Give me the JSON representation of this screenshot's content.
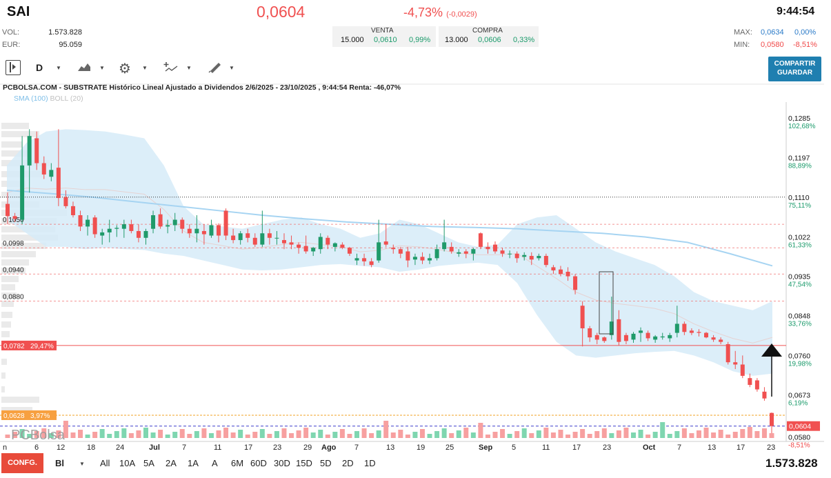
{
  "header": {
    "ticker": "SAI",
    "price": "0,0604",
    "change_pct": "-4,73%",
    "change_abs": "(-0,0029)",
    "time": "9:44:54"
  },
  "stats": {
    "vol_label": "VOL:",
    "vol_value": "1.573.828",
    "eur_label": "EUR:",
    "eur_value": "95.059",
    "max_label": "MAX:",
    "max_value": "0,0634",
    "max_pct": "0,00%",
    "min_label": "MIN:",
    "min_value": "0,0580",
    "min_pct": "-8,51%"
  },
  "orderbook": {
    "sell_label": "VENTA",
    "sell_qty": "15.000",
    "sell_price": "0,0610",
    "sell_pct": "0,99%",
    "buy_label": "COMPRA",
    "buy_qty": "13.000",
    "buy_price": "0,0606",
    "buy_pct": "0,33%"
  },
  "toolbar": {
    "interval": "D",
    "share_line1": "COMPARTIR",
    "share_line2": "GUARDAR"
  },
  "chart_title": "PCBOLSA.COM - SUBSTRATE Histórico Lineal Ajustado a Dividendos 2/6/2025 - 23/10/2025 , 9:44:54 Renta: -46,07%",
  "indicators": {
    "sma": "SMA (100)",
    "boll": "BOLL (20)"
  },
  "watermark": "PCBolsa",
  "bottom": {
    "config": "CONFG.",
    "scale": "Bl",
    "periods": [
      "All",
      "10A",
      "5A",
      "2A",
      "1A",
      "A",
      "6M",
      "60D",
      "30D",
      "15D",
      "5D",
      "2D",
      "1D"
    ],
    "volume": "1.573.828"
  },
  "colors": {
    "up": "#1f9a6a",
    "down": "#f05050",
    "band": "#d6ebf8",
    "sma": "#a6d4f2"
  },
  "chart_data": {
    "type": "candlestick",
    "title": "PCBOLSA.COM - SUBSTRATE Histórico Lineal Ajustado a Dividendos 2/6/2025 - 23/10/2025",
    "ylim": [
      0.057,
      0.132
    ],
    "y_ticks": [
      {
        "value": 0.1285,
        "label": "0,1285",
        "pct": "102,68%"
      },
      {
        "value": 0.1197,
        "label": "0,1197",
        "pct": "88,89%"
      },
      {
        "value": 0.111,
        "label": "0,1110",
        "pct": "75,11%"
      },
      {
        "value": 0.1022,
        "label": "0,1022",
        "pct": "61,33%"
      },
      {
        "value": 0.0935,
        "label": "0,0935",
        "pct": "47,54%"
      },
      {
        "value": 0.0848,
        "label": "0,0848",
        "pct": "33,76%"
      },
      {
        "value": 0.076,
        "label": "0,0760",
        "pct": "19,98%"
      },
      {
        "value": 0.0673,
        "label": "0,0673",
        "pct": "6,19%"
      },
      {
        "value": 0.058,
        "label": "0,0580",
        "pct": "-8,51%"
      }
    ],
    "left_levels": [
      {
        "value": 0.105,
        "label": "0,1050"
      },
      {
        "value": 0.0998,
        "label": "0,0998"
      },
      {
        "value": 0.094,
        "label": "0,0940"
      },
      {
        "value": 0.088,
        "label": "0,0880"
      }
    ],
    "support_line": {
      "value": 0.0782,
      "label": "0,0782",
      "pct": "29,47%"
    },
    "orange_line": {
      "value": 0.0628,
      "label": "0,0628",
      "pct": "3,97%"
    },
    "last_price": {
      "value": 0.0604,
      "label": "0,0604"
    },
    "dotted_line": 0.111,
    "x_labels": [
      "n",
      "6",
      "12",
      "18",
      "24",
      "Jul",
      "7",
      "11",
      "17",
      "23",
      "29",
      "Ago",
      "7",
      "13",
      "19",
      "25",
      "Sep",
      "5",
      "11",
      "17",
      "23",
      "Oct",
      "7",
      "13",
      "17",
      "23"
    ],
    "candles": [
      {
        "o": 0.1095,
        "h": 0.112,
        "l": 0.105,
        "c": 0.1068
      },
      {
        "o": 0.1068,
        "h": 0.1075,
        "l": 0.1055,
        "c": 0.1062
      },
      {
        "o": 0.106,
        "h": 0.1245,
        "l": 0.105,
        "c": 0.118
      },
      {
        "o": 0.118,
        "h": 0.126,
        "l": 0.112,
        "c": 0.1245
      },
      {
        "o": 0.124,
        "h": 0.1255,
        "l": 0.117,
        "c": 0.1185
      },
      {
        "o": 0.1185,
        "h": 0.12,
        "l": 0.115,
        "c": 0.116
      },
      {
        "o": 0.1155,
        "h": 0.1185,
        "l": 0.1145,
        "c": 0.117
      },
      {
        "o": 0.1175,
        "h": 0.126,
        "l": 0.109,
        "c": 0.1108
      },
      {
        "o": 0.111,
        "h": 0.1125,
        "l": 0.1085,
        "c": 0.109
      },
      {
        "o": 0.109,
        "h": 0.11,
        "l": 0.1065,
        "c": 0.107
      },
      {
        "o": 0.107,
        "h": 0.108,
        "l": 0.1035,
        "c": 0.1045
      },
      {
        "o": 0.1045,
        "h": 0.107,
        "l": 0.1025,
        "c": 0.106
      },
      {
        "o": 0.1065,
        "h": 0.107,
        "l": 0.102,
        "c": 0.1028
      },
      {
        "o": 0.1025,
        "h": 0.104,
        "l": 0.1005,
        "c": 0.1032
      },
      {
        "o": 0.1032,
        "h": 0.106,
        "l": 0.101,
        "c": 0.104
      },
      {
        "o": 0.104,
        "h": 0.1048,
        "l": 0.1022,
        "c": 0.1042
      },
      {
        "o": 0.104,
        "h": 0.106,
        "l": 0.102,
        "c": 0.105
      },
      {
        "o": 0.105,
        "h": 0.106,
        "l": 0.103,
        "c": 0.1035
      },
      {
        "o": 0.1035,
        "h": 0.105,
        "l": 0.101,
        "c": 0.102
      },
      {
        "o": 0.102,
        "h": 0.104,
        "l": 0.1005,
        "c": 0.1035
      },
      {
        "o": 0.104,
        "h": 0.108,
        "l": 0.103,
        "c": 0.107
      },
      {
        "o": 0.1072,
        "h": 0.1085,
        "l": 0.104,
        "c": 0.1045
      },
      {
        "o": 0.1045,
        "h": 0.106,
        "l": 0.103,
        "c": 0.1048
      },
      {
        "o": 0.1048,
        "h": 0.1075,
        "l": 0.1035,
        "c": 0.106
      },
      {
        "o": 0.106,
        "h": 0.1065,
        "l": 0.103,
        "c": 0.104
      },
      {
        "o": 0.104,
        "h": 0.105,
        "l": 0.102,
        "c": 0.103
      },
      {
        "o": 0.103,
        "h": 0.107,
        "l": 0.101,
        "c": 0.104
      },
      {
        "o": 0.1035,
        "h": 0.105,
        "l": 0.1005,
        "c": 0.1028
      },
      {
        "o": 0.1025,
        "h": 0.106,
        "l": 0.102,
        "c": 0.1048
      },
      {
        "o": 0.1048,
        "h": 0.1052,
        "l": 0.101,
        "c": 0.1025
      },
      {
        "o": 0.108,
        "h": 0.1085,
        "l": 0.1015,
        "c": 0.1025
      },
      {
        "o": 0.1025,
        "h": 0.104,
        "l": 0.1008,
        "c": 0.1015
      },
      {
        "o": 0.1015,
        "h": 0.1035,
        "l": 0.1005,
        "c": 0.103
      },
      {
        "o": 0.103,
        "h": 0.104,
        "l": 0.101,
        "c": 0.102
      },
      {
        "o": 0.102,
        "h": 0.103,
        "l": 0.1,
        "c": 0.1005
      },
      {
        "o": 0.1005,
        "h": 0.108,
        "l": 0.1,
        "c": 0.103
      },
      {
        "o": 0.103,
        "h": 0.104,
        "l": 0.1005,
        "c": 0.102
      },
      {
        "o": 0.102,
        "h": 0.1035,
        "l": 0.1005,
        "c": 0.102
      },
      {
        "o": 0.1015,
        "h": 0.103,
        "l": 0.0995,
        "c": 0.1008
      },
      {
        "o": 0.101,
        "h": 0.1025,
        "l": 0.0995,
        "c": 0.1005
      },
      {
        "o": 0.1005,
        "h": 0.101,
        "l": 0.0985,
        "c": 0.0998
      },
      {
        "o": 0.1002,
        "h": 0.1025,
        "l": 0.0985,
        "c": 0.099
      },
      {
        "o": 0.099,
        "h": 0.1,
        "l": 0.098,
        "c": 0.0998
      },
      {
        "o": 0.0995,
        "h": 0.103,
        "l": 0.0985,
        "c": 0.1022
      },
      {
        "o": 0.102,
        "h": 0.1025,
        "l": 0.0995,
        "c": 0.1005
      },
      {
        "o": 0.1,
        "h": 0.101,
        "l": 0.099,
        "c": 0.1008
      },
      {
        "o": 0.1005,
        "h": 0.101,
        "l": 0.0995,
        "c": 0.0998
      },
      {
        "o": 0.0998,
        "h": 0.1,
        "l": 0.098,
        "c": 0.0985
      },
      {
        "o": 0.097,
        "h": 0.0985,
        "l": 0.096,
        "c": 0.0975
      },
      {
        "o": 0.0975,
        "h": 0.0985,
        "l": 0.0958,
        "c": 0.0968
      },
      {
        "o": 0.0968,
        "h": 0.0975,
        "l": 0.0955,
        "c": 0.096
      },
      {
        "o": 0.097,
        "h": 0.106,
        "l": 0.0965,
        "c": 0.101
      },
      {
        "o": 0.1012,
        "h": 0.105,
        "l": 0.1,
        "c": 0.1005
      },
      {
        "o": 0.0998,
        "h": 0.1005,
        "l": 0.0985,
        "c": 0.0995
      },
      {
        "o": 0.0995,
        "h": 0.1,
        "l": 0.0975,
        "c": 0.0985
      },
      {
        "o": 0.099,
        "h": 0.1,
        "l": 0.0955,
        "c": 0.097
      },
      {
        "o": 0.0972,
        "h": 0.0985,
        "l": 0.096,
        "c": 0.0978
      },
      {
        "o": 0.0978,
        "h": 0.0988,
        "l": 0.0962,
        "c": 0.097
      },
      {
        "o": 0.097,
        "h": 0.0985,
        "l": 0.0962,
        "c": 0.0975
      },
      {
        "o": 0.0975,
        "h": 0.1005,
        "l": 0.097,
        "c": 0.0995
      },
      {
        "o": 0.0995,
        "h": 0.106,
        "l": 0.099,
        "c": 0.101
      },
      {
        "o": 0.1,
        "h": 0.101,
        "l": 0.0985,
        "c": 0.099
      },
      {
        "o": 0.0985,
        "h": 0.0995,
        "l": 0.0978,
        "c": 0.0988
      },
      {
        "o": 0.099,
        "h": 0.0995,
        "l": 0.0975,
        "c": 0.0985
      },
      {
        "o": 0.0985,
        "h": 0.0998,
        "l": 0.097,
        "c": 0.0995
      },
      {
        "o": 0.103,
        "h": 0.1032,
        "l": 0.0995,
        "c": 0.1
      },
      {
        "o": 0.1,
        "h": 0.101,
        "l": 0.0985,
        "c": 0.0995
      },
      {
        "o": 0.1005,
        "h": 0.1012,
        "l": 0.0985,
        "c": 0.099
      },
      {
        "o": 0.0992,
        "h": 0.0998,
        "l": 0.0978,
        "c": 0.0985
      },
      {
        "o": 0.0985,
        "h": 0.0992,
        "l": 0.0975,
        "c": 0.0985
      },
      {
        "o": 0.0985,
        "h": 0.099,
        "l": 0.0965,
        "c": 0.0975
      },
      {
        "o": 0.0978,
        "h": 0.0988,
        "l": 0.097,
        "c": 0.0982
      },
      {
        "o": 0.098,
        "h": 0.0988,
        "l": 0.096,
        "c": 0.0972
      },
      {
        "o": 0.0975,
        "h": 0.0985,
        "l": 0.097,
        "c": 0.098
      },
      {
        "o": 0.098,
        "h": 0.0985,
        "l": 0.0955,
        "c": 0.096
      },
      {
        "o": 0.0955,
        "h": 0.096,
        "l": 0.094,
        "c": 0.0948
      },
      {
        "o": 0.095,
        "h": 0.0958,
        "l": 0.0935,
        "c": 0.094
      },
      {
        "o": 0.0945,
        "h": 0.0955,
        "l": 0.0925,
        "c": 0.0935
      },
      {
        "o": 0.0935,
        "h": 0.094,
        "l": 0.0895,
        "c": 0.0905
      },
      {
        "o": 0.087,
        "h": 0.088,
        "l": 0.078,
        "c": 0.082
      },
      {
        "o": 0.082,
        "h": 0.0825,
        "l": 0.079,
        "c": 0.08
      },
      {
        "o": 0.0805,
        "h": 0.081,
        "l": 0.0785,
        "c": 0.0795
      },
      {
        "o": 0.08,
        "h": 0.0802,
        "l": 0.0788,
        "c": 0.0792
      },
      {
        "o": 0.0805,
        "h": 0.089,
        "l": 0.0795,
        "c": 0.0835
      },
      {
        "o": 0.084,
        "h": 0.086,
        "l": 0.0782,
        "c": 0.079
      },
      {
        "o": 0.0805,
        "h": 0.081,
        "l": 0.0785,
        "c": 0.0792
      },
      {
        "o": 0.0795,
        "h": 0.0812,
        "l": 0.0788,
        "c": 0.0808
      },
      {
        "o": 0.081,
        "h": 0.0822,
        "l": 0.079,
        "c": 0.0815
      },
      {
        "o": 0.081,
        "h": 0.0815,
        "l": 0.0792,
        "c": 0.0798
      },
      {
        "o": 0.0795,
        "h": 0.0805,
        "l": 0.0788,
        "c": 0.0802
      },
      {
        "o": 0.08,
        "h": 0.081,
        "l": 0.0795,
        "c": 0.0802
      },
      {
        "o": 0.0798,
        "h": 0.081,
        "l": 0.079,
        "c": 0.0805
      },
      {
        "o": 0.081,
        "h": 0.087,
        "l": 0.08,
        "c": 0.083
      },
      {
        "o": 0.083,
        "h": 0.0835,
        "l": 0.0805,
        "c": 0.0812
      },
      {
        "o": 0.0815,
        "h": 0.082,
        "l": 0.0805,
        "c": 0.081
      },
      {
        "o": 0.0812,
        "h": 0.0818,
        "l": 0.0802,
        "c": 0.081
      },
      {
        "o": 0.081,
        "h": 0.0812,
        "l": 0.0798,
        "c": 0.08
      },
      {
        "o": 0.08,
        "h": 0.0805,
        "l": 0.079,
        "c": 0.0795
      },
      {
        "o": 0.0795,
        "h": 0.08,
        "l": 0.0785,
        "c": 0.079
      },
      {
        "o": 0.0785,
        "h": 0.079,
        "l": 0.074,
        "c": 0.0745
      },
      {
        "o": 0.0745,
        "h": 0.077,
        "l": 0.073,
        "c": 0.074
      },
      {
        "o": 0.074,
        "h": 0.076,
        "l": 0.071,
        "c": 0.0715
      },
      {
        "o": 0.071,
        "h": 0.072,
        "l": 0.069,
        "c": 0.0695
      },
      {
        "o": 0.0705,
        "h": 0.071,
        "l": 0.068,
        "c": 0.0685
      },
      {
        "o": 0.068,
        "h": 0.069,
        "l": 0.066,
        "c": 0.0665
      },
      {
        "o": 0.0633,
        "h": 0.0634,
        "l": 0.058,
        "c": 0.0604
      }
    ]
  }
}
